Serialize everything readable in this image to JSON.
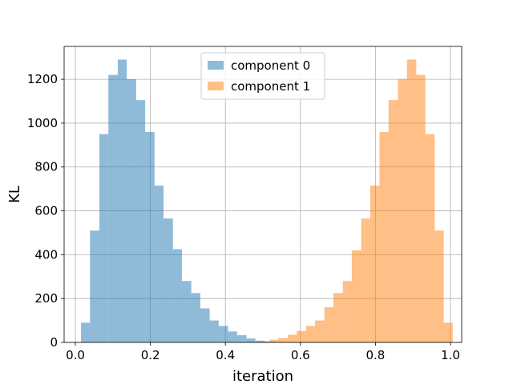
{
  "chart_data": {
    "type": "bar",
    "xlabel": "iteration",
    "ylabel": "KL",
    "xlim": [
      -0.03,
      1.03
    ],
    "ylim": [
      0,
      1350
    ],
    "x_ticks": [
      0.0,
      0.2,
      0.4,
      0.6,
      0.8,
      1.0
    ],
    "x_tick_labels": [
      "0.0",
      "0.2",
      "0.4",
      "0.6",
      "0.8",
      "1.0"
    ],
    "y_ticks": [
      0,
      200,
      400,
      600,
      800,
      1000,
      1200
    ],
    "y_tick_labels": [
      "0",
      "200",
      "400",
      "600",
      "800",
      "1000",
      "1200"
    ],
    "grid": true,
    "legend_position": "top-center",
    "series": [
      {
        "name": "component 0",
        "color": "#1f77b4",
        "bins": [
          {
            "x0": 0.015,
            "x1": 0.039,
            "count": 90
          },
          {
            "x0": 0.039,
            "x1": 0.064,
            "count": 510
          },
          {
            "x0": 0.064,
            "x1": 0.088,
            "count": 950
          },
          {
            "x0": 0.088,
            "x1": 0.113,
            "count": 1220
          },
          {
            "x0": 0.113,
            "x1": 0.137,
            "count": 1290
          },
          {
            "x0": 0.137,
            "x1": 0.162,
            "count": 1200
          },
          {
            "x0": 0.162,
            "x1": 0.186,
            "count": 1105
          },
          {
            "x0": 0.186,
            "x1": 0.211,
            "count": 960
          },
          {
            "x0": 0.211,
            "x1": 0.235,
            "count": 715
          },
          {
            "x0": 0.235,
            "x1": 0.26,
            "count": 565
          },
          {
            "x0": 0.26,
            "x1": 0.284,
            "count": 425
          },
          {
            "x0": 0.284,
            "x1": 0.309,
            "count": 280
          },
          {
            "x0": 0.309,
            "x1": 0.333,
            "count": 225
          },
          {
            "x0": 0.333,
            "x1": 0.358,
            "count": 155
          },
          {
            "x0": 0.358,
            "x1": 0.382,
            "count": 100
          },
          {
            "x0": 0.382,
            "x1": 0.407,
            "count": 75
          },
          {
            "x0": 0.407,
            "x1": 0.431,
            "count": 50
          },
          {
            "x0": 0.431,
            "x1": 0.456,
            "count": 33
          },
          {
            "x0": 0.456,
            "x1": 0.48,
            "count": 18
          },
          {
            "x0": 0.48,
            "x1": 0.505,
            "count": 8
          },
          {
            "x0": 0.505,
            "x1": 0.529,
            "count": 4
          },
          {
            "x0": 0.529,
            "x1": 0.554,
            "count": 2
          }
        ]
      },
      {
        "name": "component 1",
        "color": "#ff7f0e",
        "bins": [
          {
            "x0": 0.468,
            "x1": 0.492,
            "count": 2
          },
          {
            "x0": 0.492,
            "x1": 0.517,
            "count": 5
          },
          {
            "x0": 0.517,
            "x1": 0.541,
            "count": 12
          },
          {
            "x0": 0.541,
            "x1": 0.566,
            "count": 20
          },
          {
            "x0": 0.566,
            "x1": 0.59,
            "count": 35
          },
          {
            "x0": 0.59,
            "x1": 0.615,
            "count": 52
          },
          {
            "x0": 0.615,
            "x1": 0.639,
            "count": 75
          },
          {
            "x0": 0.639,
            "x1": 0.664,
            "count": 100
          },
          {
            "x0": 0.664,
            "x1": 0.688,
            "count": 160
          },
          {
            "x0": 0.688,
            "x1": 0.713,
            "count": 225
          },
          {
            "x0": 0.713,
            "x1": 0.737,
            "count": 280
          },
          {
            "x0": 0.737,
            "x1": 0.762,
            "count": 420
          },
          {
            "x0": 0.762,
            "x1": 0.786,
            "count": 565
          },
          {
            "x0": 0.786,
            "x1": 0.811,
            "count": 715
          },
          {
            "x0": 0.811,
            "x1": 0.835,
            "count": 960
          },
          {
            "x0": 0.835,
            "x1": 0.86,
            "count": 1105
          },
          {
            "x0": 0.86,
            "x1": 0.884,
            "count": 1200
          },
          {
            "x0": 0.884,
            "x1": 0.909,
            "count": 1290
          },
          {
            "x0": 0.909,
            "x1": 0.933,
            "count": 1220
          },
          {
            "x0": 0.933,
            "x1": 0.958,
            "count": 950
          },
          {
            "x0": 0.958,
            "x1": 0.982,
            "count": 510
          },
          {
            "x0": 0.982,
            "x1": 1.006,
            "count": 90
          }
        ]
      }
    ]
  }
}
